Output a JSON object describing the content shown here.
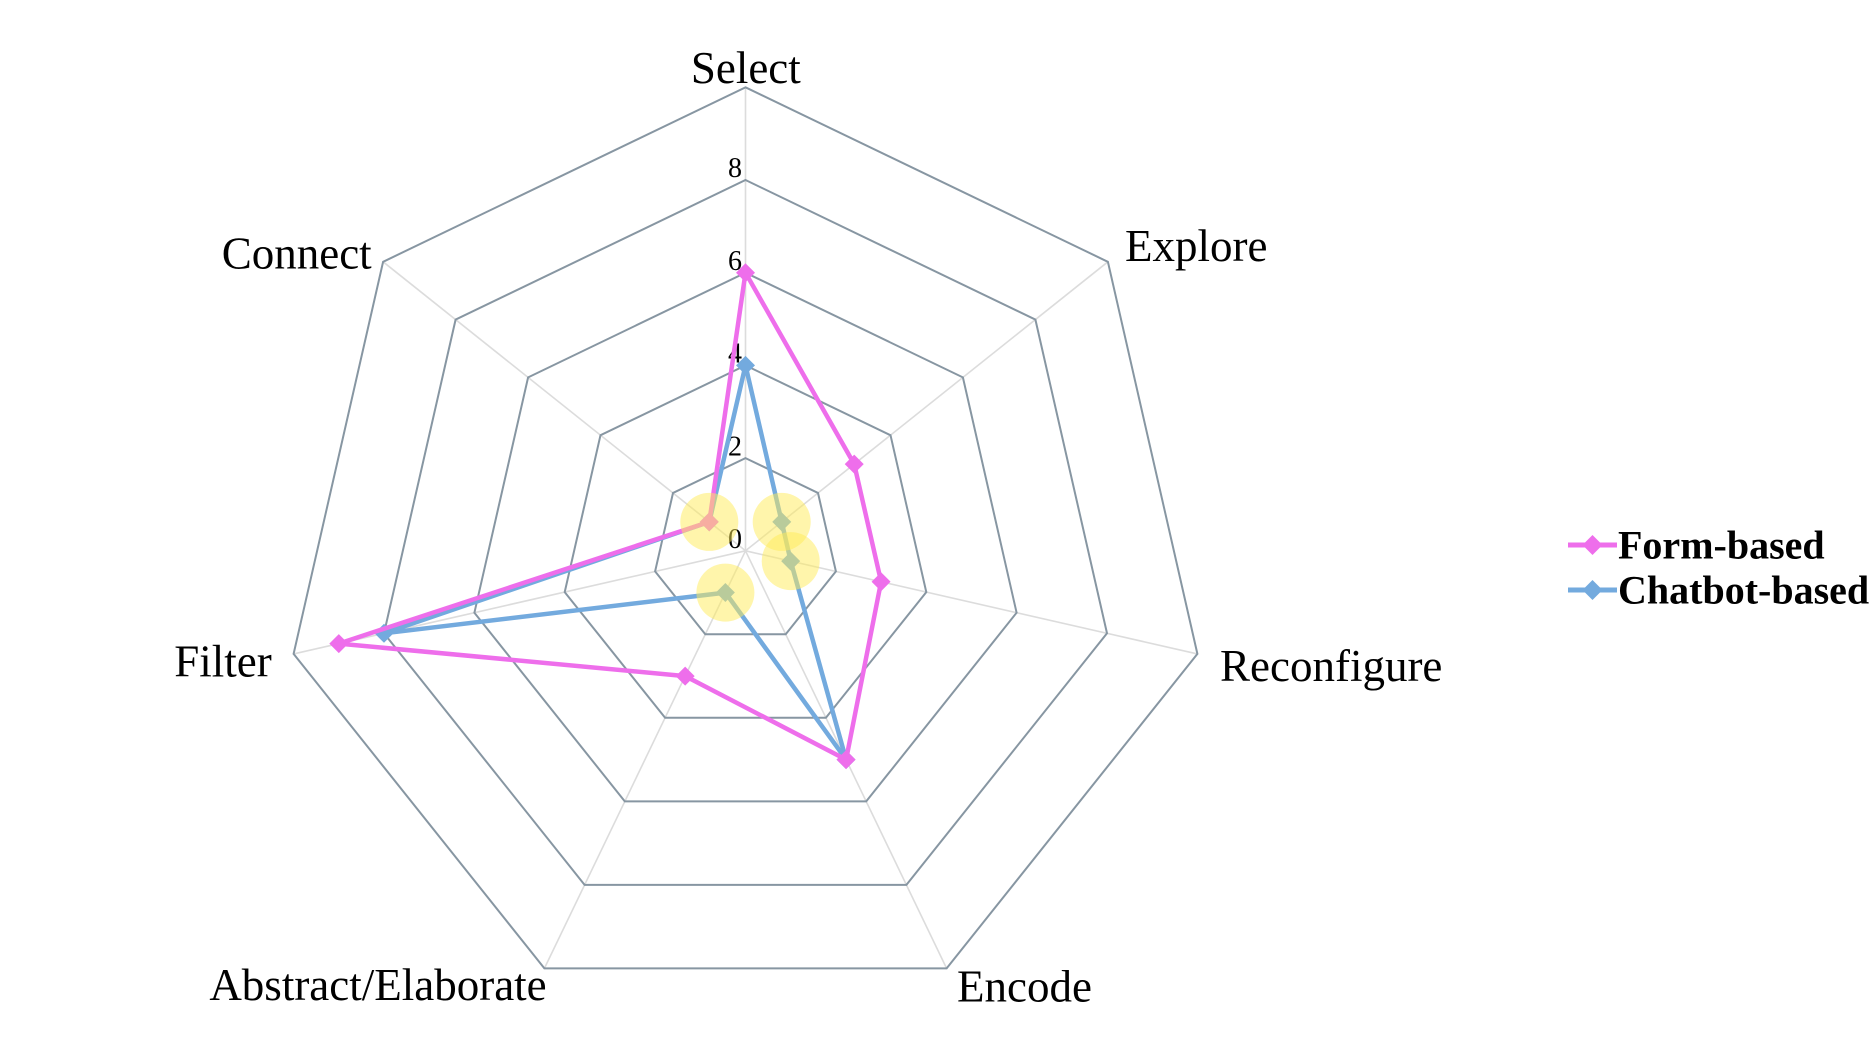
{
  "chart_data": {
    "type": "radar",
    "title": "",
    "axes": [
      "Select",
      "Explore",
      "Reconfigure",
      "Encode",
      "Abstract/Elaborate",
      "Filter",
      "Connect"
    ],
    "scale": {
      "min": 0,
      "max": 10,
      "ring_step": 2,
      "tick_labels": [
        "0",
        "2",
        "4",
        "6",
        "8"
      ],
      "tick_values": [
        0,
        2,
        4,
        6,
        8
      ]
    },
    "series": [
      {
        "name": "Form-based",
        "color": "#ee6eeb",
        "values": [
          6,
          3,
          3,
          5,
          3,
          9,
          1
        ]
      },
      {
        "name": "Chatbot-based",
        "color": "#73aade",
        "values": [
          4,
          1,
          1,
          5,
          1,
          8,
          1
        ]
      }
    ],
    "legend": {
      "position": "right",
      "entries": [
        "Form-based",
        "Chatbot-based"
      ]
    },
    "highlights": [
      {
        "axis": "Connect",
        "value": 1
      },
      {
        "axis": "Explore",
        "value": 1
      },
      {
        "axis": "Reconfigure",
        "value": 1
      },
      {
        "axis": "Abstract/Elaborate",
        "value": 1
      }
    ],
    "grid": "on",
    "marker": "diamond"
  },
  "colors": {
    "background": "#ffffff",
    "grid_ring": "#8796a2",
    "spoke": "#dcdcdc",
    "text": "#000000",
    "form_based": "#ee6eeb",
    "chatbot_based": "#73aade",
    "highlight": "#ffeb57"
  }
}
